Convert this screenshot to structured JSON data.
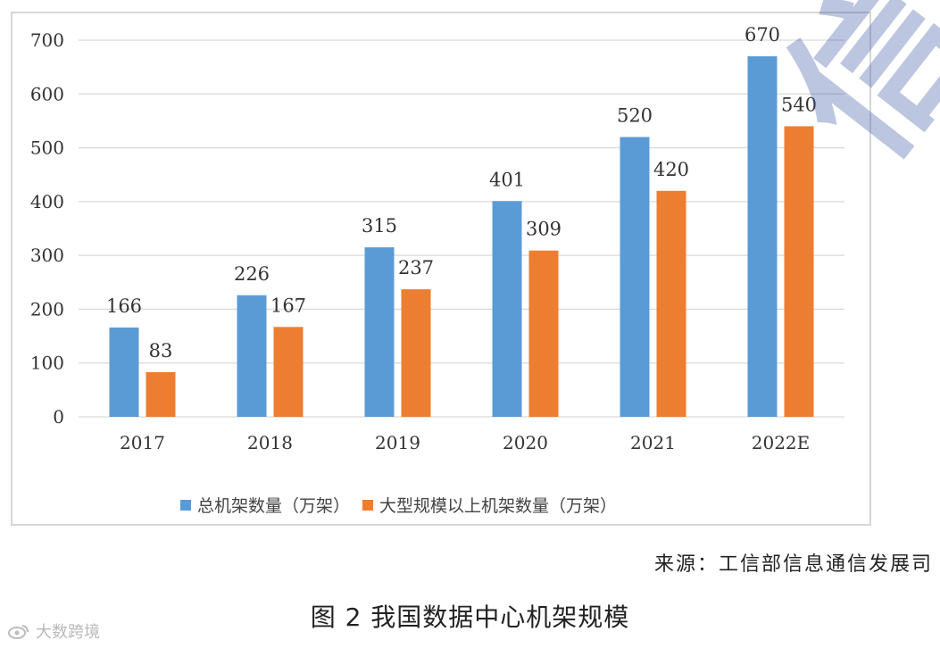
{
  "chart_data": {
    "type": "bar",
    "categories": [
      "2017",
      "2018",
      "2019",
      "2020",
      "2021",
      "2022E"
    ],
    "series": [
      {
        "name": "总机架数量（万架）",
        "color": "#5b9bd5",
        "values": [
          166,
          226,
          315,
          401,
          520,
          670
        ]
      },
      {
        "name": "大型规模以上机架数量（万架）",
        "color": "#ed7d31",
        "values": [
          83,
          167,
          237,
          309,
          420,
          540
        ]
      }
    ],
    "ylim": [
      0,
      700
    ],
    "yticks": [
      0,
      100,
      200,
      300,
      400,
      500,
      600,
      700
    ],
    "grid": true,
    "legend": "bottom",
    "xlabel": "",
    "ylabel": ""
  },
  "source": "来源：工信部信息通信发展司",
  "caption": "图 2 我国数据中心机架规模",
  "watermark": {
    "badge_text": "大数跨境",
    "badge_icon": "sina-eye-icon",
    "overlay_text": "信息通信"
  }
}
